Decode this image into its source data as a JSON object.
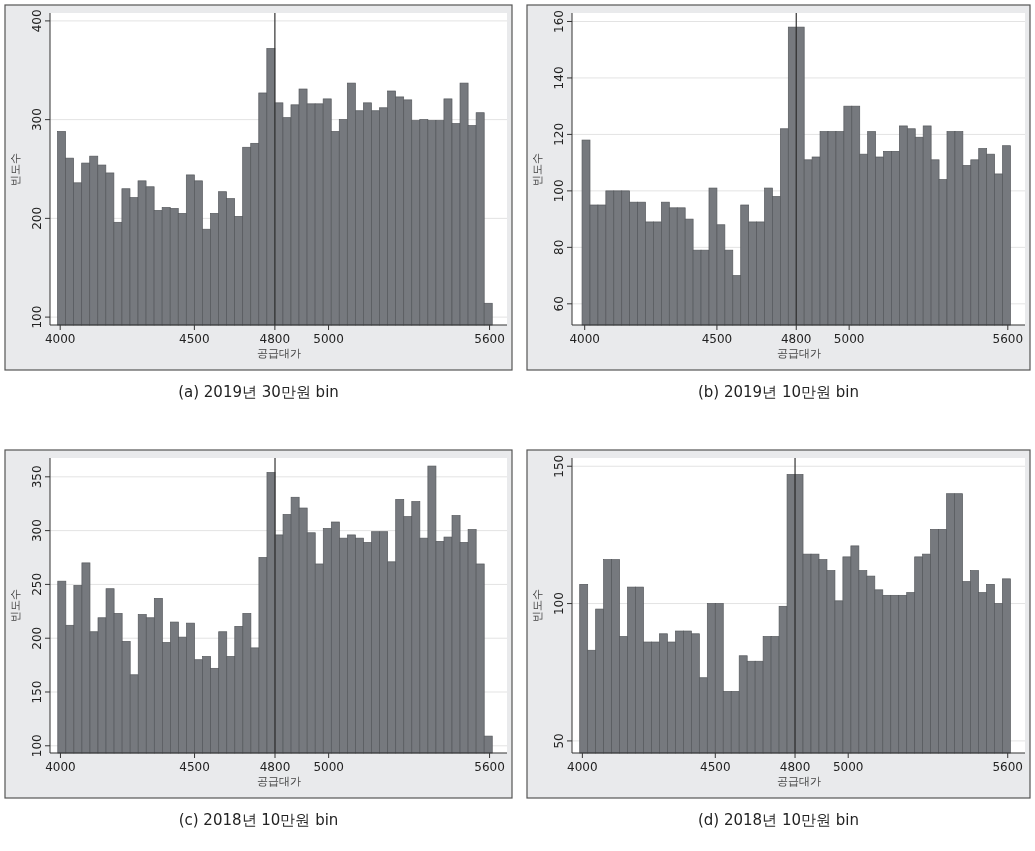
{
  "chart_data": [
    {
      "type": "histogram",
      "title": "(a) 2019년 30만원 bin",
      "xlabel": "공급대가",
      "ylabel": "빈도수",
      "color": "#76797e",
      "grid": "y",
      "bins": [
        3990,
        4020,
        4050,
        4080,
        4110,
        4140,
        4170,
        4200,
        4230,
        4260,
        4290,
        4320,
        4350,
        4380,
        4410,
        4440,
        4470,
        4500,
        4530,
        4560,
        4590,
        4620,
        4650,
        4680,
        4710,
        4740,
        4770,
        4800,
        4830,
        4860,
        4890,
        4920,
        4950,
        4980,
        5010,
        5040,
        5070,
        5100,
        5130,
        5160,
        5190,
        5220,
        5250,
        5280,
        5310,
        5340,
        5370,
        5400,
        5430,
        5460,
        5490,
        5520,
        5550,
        5580,
        5610
      ],
      "values": [
        288,
        261,
        236,
        256,
        263,
        254,
        246,
        196,
        230,
        221,
        238,
        232,
        208,
        211,
        210,
        205,
        244,
        238,
        189,
        205,
        227,
        220,
        202,
        272,
        276,
        327,
        372,
        317,
        302,
        315,
        331,
        316,
        316,
        321,
        288,
        300,
        337,
        309,
        317,
        309,
        312,
        329,
        323,
        320,
        299,
        300,
        299,
        299,
        321,
        296,
        337,
        294,
        307,
        114
      ],
      "xlim": [
        3962,
        5665
      ],
      "ylim": [
        92,
        408
      ],
      "xticks": [
        4000,
        4500,
        4800,
        5000,
        5600
      ],
      "yticks": [
        100,
        200,
        300,
        400
      ],
      "ref_lines": [
        {
          "axis": "x",
          "value": 4800,
          "color": "#333333"
        }
      ]
    },
    {
      "type": "histogram",
      "title": "(b) 2019년 10만원 bin",
      "xlabel": "공급대가",
      "ylabel": "빈도수",
      "color": "#76797e",
      "grid": "y",
      "bins": [
        3990,
        4020,
        4050,
        4080,
        4110,
        4140,
        4170,
        4200,
        4230,
        4260,
        4290,
        4320,
        4350,
        4380,
        4410,
        4440,
        4470,
        4500,
        4530,
        4560,
        4590,
        4620,
        4650,
        4680,
        4710,
        4740,
        4770,
        4800,
        4830,
        4860,
        4890,
        4920,
        4950,
        4980,
        5010,
        5040,
        5070,
        5100,
        5130,
        5160,
        5190,
        5220,
        5250,
        5280,
        5310,
        5340,
        5370,
        5400,
        5430,
        5460,
        5490,
        5520,
        5550,
        5580,
        5610
      ],
      "values": [
        118,
        95,
        95,
        100,
        100,
        100,
        96,
        96,
        89,
        89,
        96,
        94,
        94,
        90,
        79,
        79,
        101,
        88,
        79,
        70,
        95,
        89,
        89,
        101,
        98,
        122,
        158,
        158,
        111,
        112,
        121,
        121,
        121,
        130,
        130,
        113,
        121,
        112,
        114,
        114,
        123,
        122,
        119,
        123,
        111,
        104,
        121,
        121,
        109,
        111,
        115,
        113,
        106,
        116
      ],
      "xlim": [
        3952,
        5665
      ],
      "ylim": [
        52.5,
        163
      ],
      "xticks": [
        4000,
        4500,
        4800,
        5000,
        5600
      ],
      "yticks": [
        60,
        80,
        100,
        120,
        140,
        160
      ],
      "ref_lines": [
        {
          "axis": "x",
          "value": 4800,
          "color": "#333333"
        }
      ]
    },
    {
      "type": "histogram",
      "title": "(c) 2018년 10만원 bin",
      "xlabel": "공급대가",
      "ylabel": "빈도수",
      "color": "#76797e",
      "grid": "y",
      "bins": [
        3990,
        4020,
        4050,
        4080,
        4110,
        4140,
        4170,
        4200,
        4230,
        4260,
        4290,
        4320,
        4350,
        4380,
        4410,
        4440,
        4470,
        4500,
        4530,
        4560,
        4590,
        4620,
        4650,
        4680,
        4710,
        4740,
        4770,
        4800,
        4830,
        4860,
        4890,
        4920,
        4950,
        4980,
        5010,
        5040,
        5070,
        5100,
        5130,
        5160,
        5190,
        5220,
        5250,
        5280,
        5310,
        5340,
        5370,
        5400,
        5430,
        5460,
        5490,
        5520,
        5550,
        5580,
        5610
      ],
      "values": [
        253,
        212,
        249,
        270,
        206,
        219,
        246,
        223,
        197,
        166,
        222,
        219,
        237,
        196,
        215,
        201,
        214,
        180,
        183,
        172,
        206,
        183,
        211,
        223,
        191,
        275,
        354,
        296,
        315,
        331,
        321,
        298,
        269,
        302,
        308,
        293,
        296,
        293,
        289,
        299,
        299,
        271,
        329,
        313,
        327,
        293,
        360,
        290,
        294,
        314,
        289,
        301,
        269,
        109
      ],
      "xlim": [
        3961,
        5665
      ],
      "ylim": [
        93.3,
        367.5
      ],
      "xticks": [
        4000,
        4500,
        4800,
        5000,
        5600
      ],
      "yticks": [
        100,
        150,
        200,
        250,
        300,
        350
      ],
      "ref_lines": [
        {
          "axis": "x",
          "value": 4800,
          "color": "#333333"
        }
      ]
    },
    {
      "type": "histogram",
      "title": "(d) 2018년 10만원 bin",
      "xlabel": "공급대가",
      "ylabel": "빈도수",
      "color": "#76797e",
      "grid": "y",
      "bins": [
        3990,
        4020,
        4050,
        4080,
        4110,
        4140,
        4170,
        4200,
        4230,
        4260,
        4290,
        4320,
        4350,
        4380,
        4410,
        4440,
        4470,
        4500,
        4530,
        4560,
        4590,
        4620,
        4650,
        4680,
        4710,
        4740,
        4770,
        4800,
        4830,
        4860,
        4890,
        4920,
        4950,
        4980,
        5010,
        5040,
        5070,
        5100,
        5130,
        5160,
        5190,
        5220,
        5250,
        5280,
        5310,
        5340,
        5370,
        5400,
        5430,
        5460,
        5490,
        5520,
        5550,
        5580,
        5610
      ],
      "values": [
        107,
        83,
        98,
        116,
        116,
        88,
        106,
        106,
        86,
        86,
        89,
        86,
        90,
        90,
        89,
        73,
        100,
        100,
        68,
        68,
        81,
        79,
        79,
        88,
        88,
        99,
        147,
        147,
        118,
        118,
        116,
        112,
        101,
        117,
        121,
        112,
        110,
        105,
        103,
        103,
        103,
        104,
        117,
        118,
        127,
        127,
        140,
        140,
        108,
        112,
        104,
        107,
        100,
        109
      ],
      "xlim": [
        3961,
        5665
      ],
      "ylim": [
        45.6,
        153
      ],
      "xticks": [
        4000,
        4500,
        4800,
        5000,
        5600
      ],
      "yticks": [
        50,
        100,
        150
      ],
      "ref_lines": [
        {
          "axis": "x",
          "value": 4800,
          "color": "#333333"
        }
      ]
    }
  ]
}
